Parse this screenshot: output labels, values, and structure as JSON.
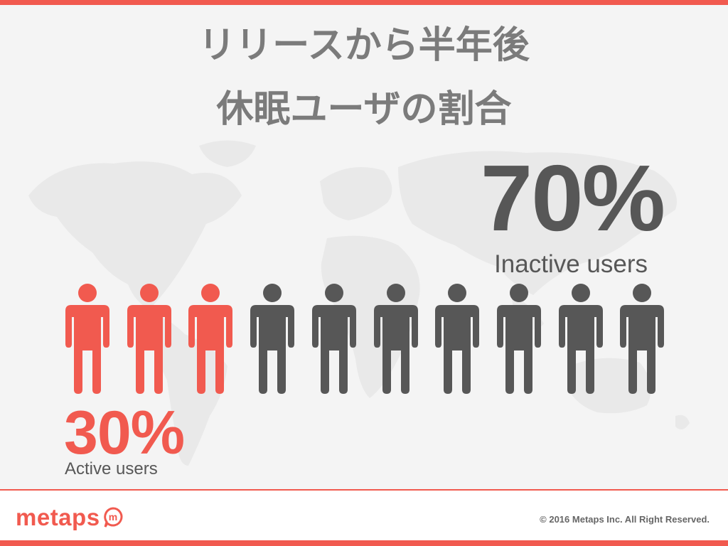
{
  "title": {
    "line1": "リリースから半年後",
    "line2": "休眠ユーザの割合"
  },
  "inactive": {
    "percent": "70%",
    "label": "Inactive users",
    "count": 7,
    "color": "#575757"
  },
  "active": {
    "percent": "30%",
    "label": "Active users",
    "count": 3,
    "color": "#f15a4f"
  },
  "people_icons": [
    "person-icon",
    "person-icon",
    "person-icon",
    "person-icon",
    "person-icon",
    "person-icon",
    "person-icon",
    "person-icon",
    "person-icon",
    "person-icon"
  ],
  "footer": {
    "logo_text": "metaps",
    "logo_mark": "m",
    "copyright": "© 2016 Metaps Inc. All Right Reserved."
  },
  "colors": {
    "accent": "#f15a4f",
    "dark": "#575757",
    "title": "#7b7b7b",
    "background": "#f4f4f4"
  }
}
